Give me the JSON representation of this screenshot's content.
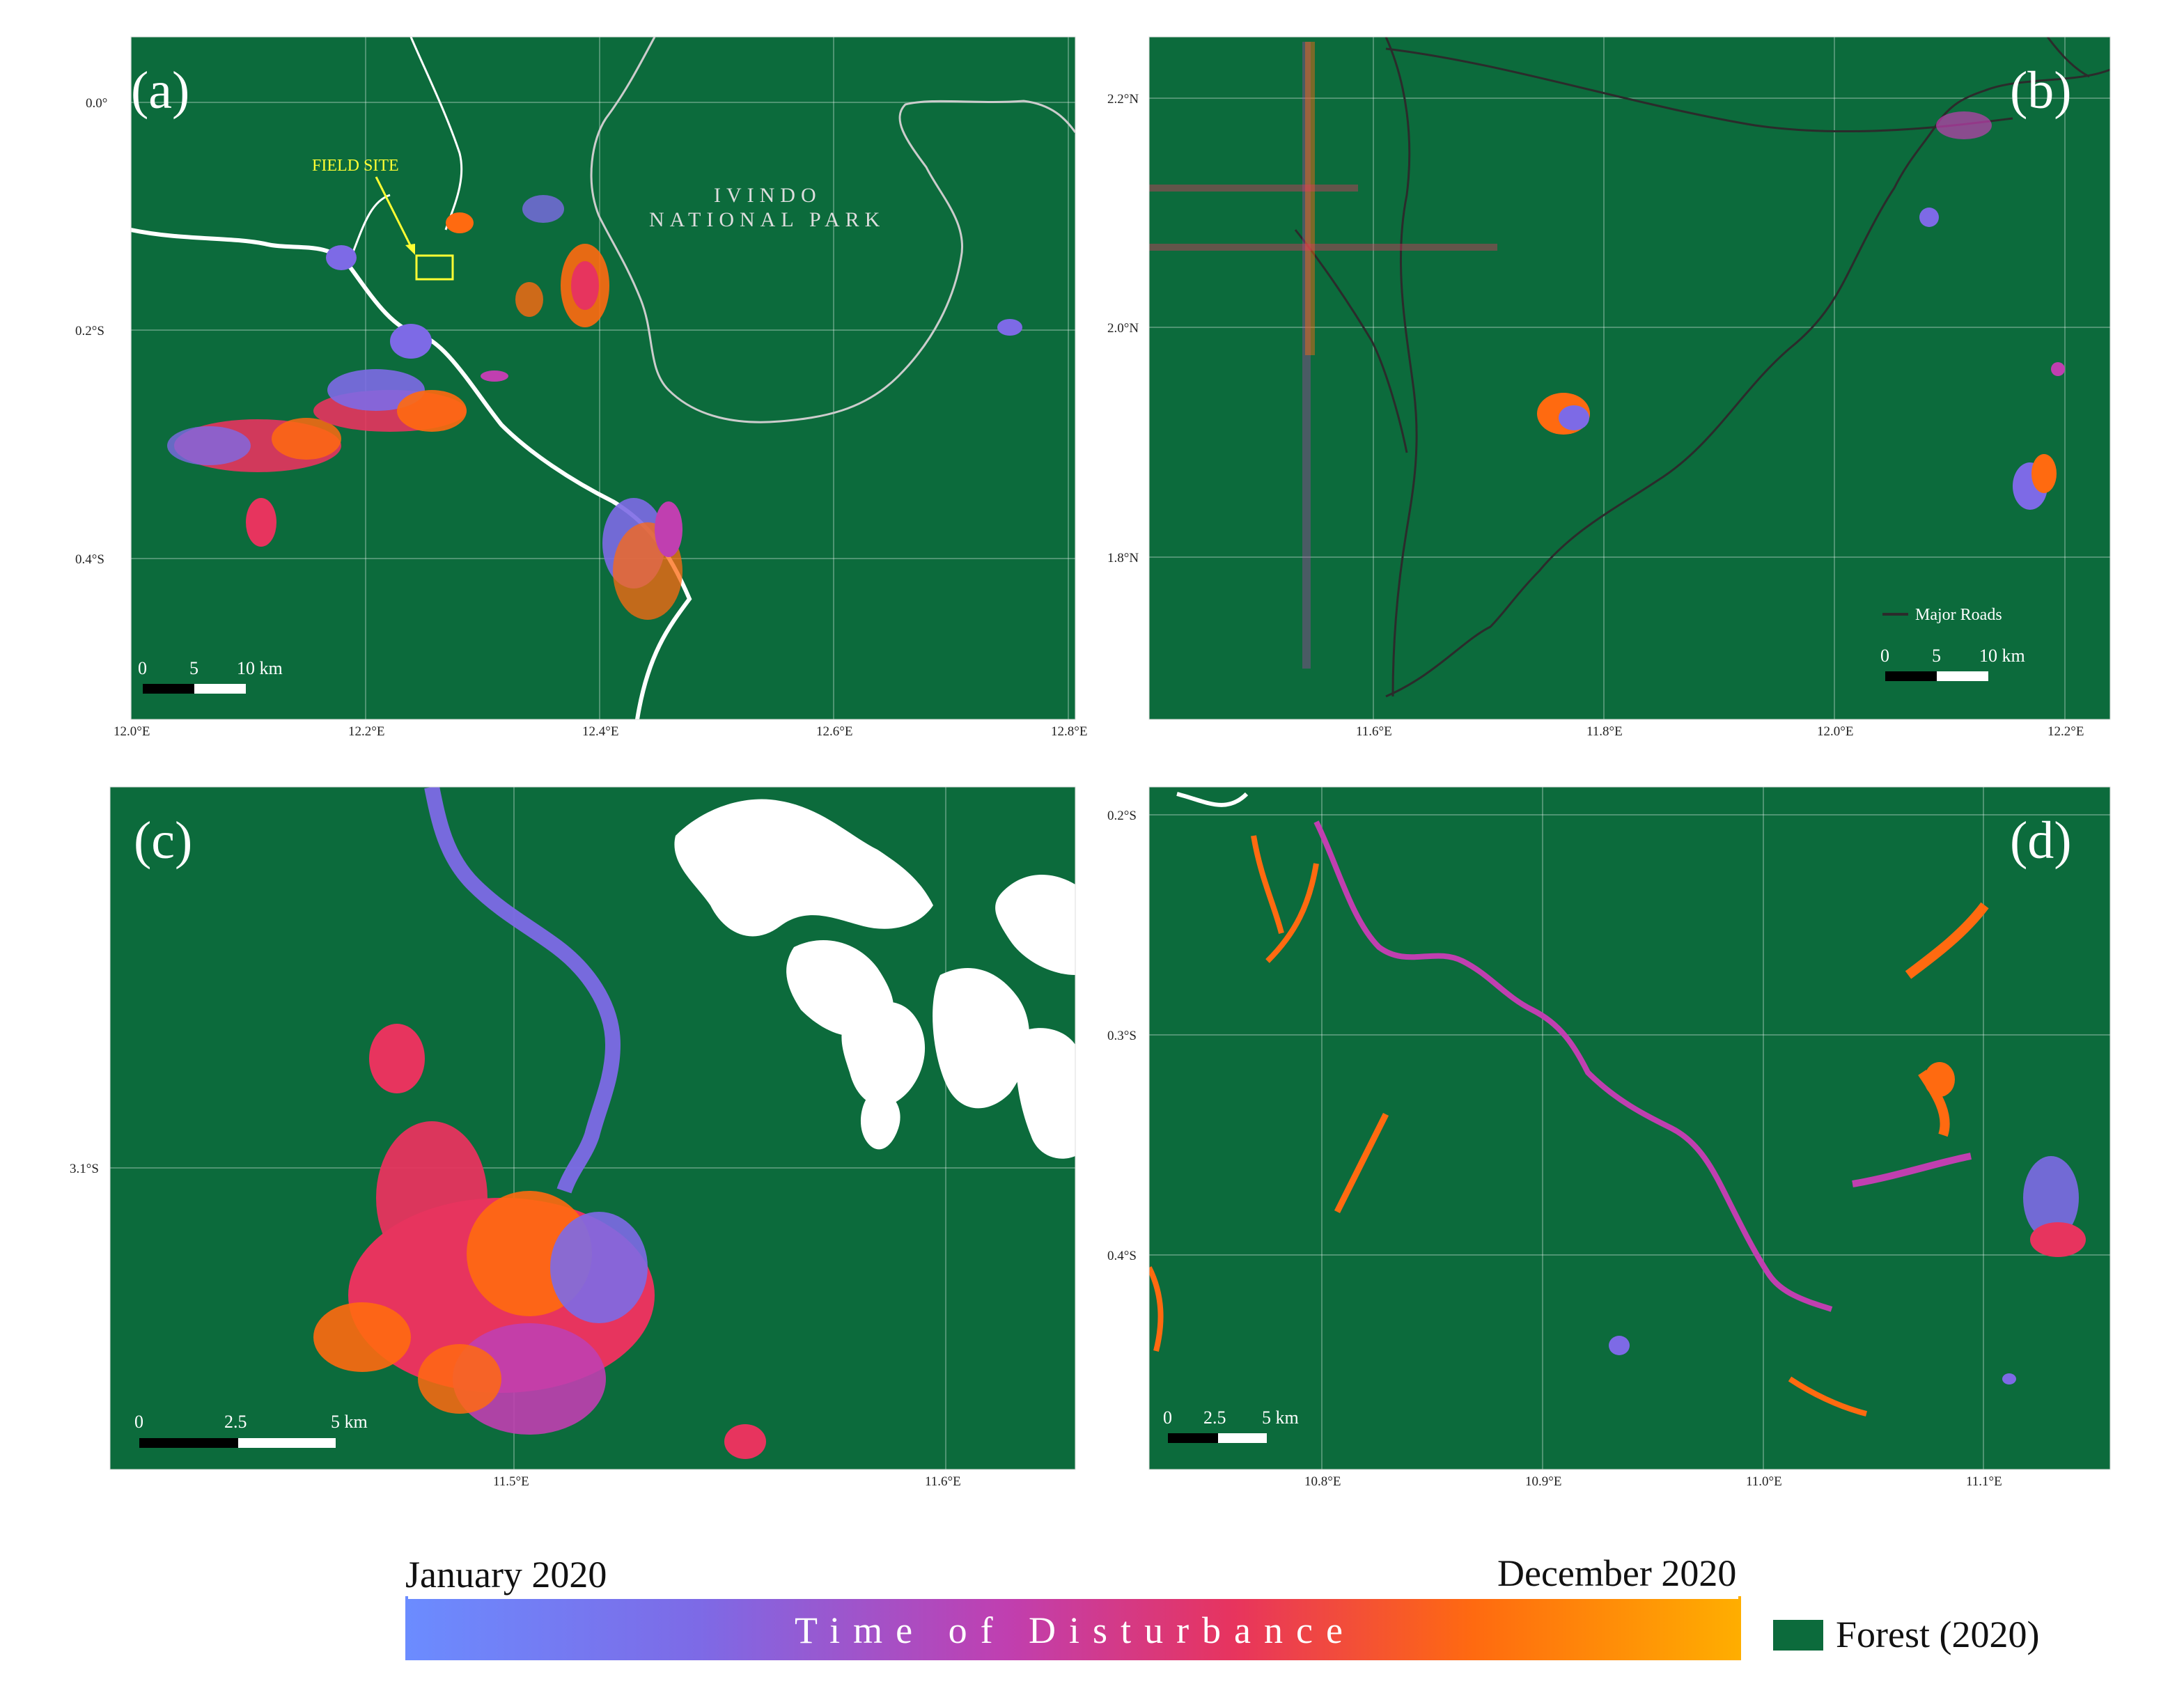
{
  "panels": {
    "a": {
      "letter": "(a)",
      "x_ticks": [
        "12.0°E",
        "12.2°E",
        "12.4°E",
        "12.6°E",
        "12.8°E"
      ],
      "y_ticks": [
        "0.0°",
        "0.2°S",
        "0.4°S"
      ],
      "park_line1": "IVINDO",
      "park_line2": "NATIONAL   PARK",
      "field_label": "FIELD SITE",
      "scale": {
        "zero": "0",
        "mid": "5",
        "end": "10 km"
      }
    },
    "b": {
      "letter": "(b)",
      "x_ticks": [
        "11.6°E",
        "11.8°E",
        "12.0°E",
        "12.2°E"
      ],
      "y_ticks": [
        "2.2°N",
        "2.0°N",
        "1.8°N"
      ],
      "roads_label": "Major Roads",
      "scale": {
        "zero": "0",
        "mid": "5",
        "end": "10 km"
      }
    },
    "c": {
      "letter": "(c)",
      "x_ticks": [
        "11.5°E",
        "11.6°E"
      ],
      "y_ticks": [
        "3.1°S"
      ],
      "scale": {
        "zero": "0",
        "mid": "2.5",
        "end": "5 km"
      }
    },
    "d": {
      "letter": "(d)",
      "x_ticks": [
        "10.8°E",
        "10.9°E",
        "11.0°E",
        "11.1°E"
      ],
      "y_ticks": [
        "0.2°S",
        "0.3°S",
        "0.4°S"
      ],
      "scale": {
        "zero": "0",
        "mid": "2.5",
        "end": "5 km"
      }
    }
  },
  "legend": {
    "start_label": "January 2020",
    "end_label": "December 2020",
    "title": "Time   of   Disturbance",
    "forest_label": "Forest (2020)"
  },
  "colors": {
    "forest": "#0c6b3c",
    "early": "#6b8cff",
    "mid": "#c03fb0",
    "late": "#ffae00",
    "field_site": "#ffff33"
  }
}
